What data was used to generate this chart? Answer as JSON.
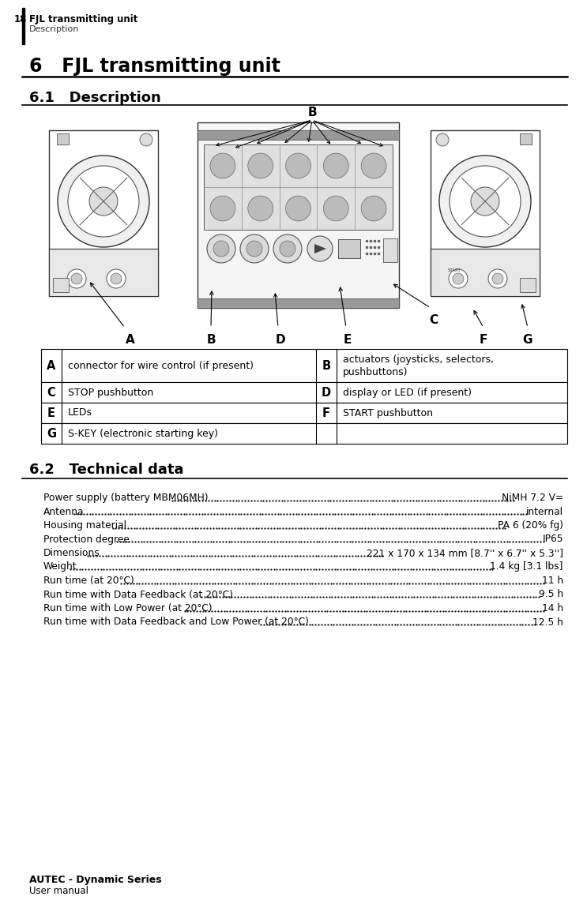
{
  "page_number": "18",
  "header_title": "FJL transmitting unit",
  "header_subtitle": "Description",
  "chapter_title": "6   FJL transmitting unit",
  "section1_title": "6.1   Description",
  "section2_title": "6.2   Technical data",
  "table_rows": [
    {
      "left_key": "A",
      "left_val": "connector for wire control (if present)",
      "right_key": "B",
      "right_val": "actuators (joysticks, selectors,\npushbuttons)"
    },
    {
      "left_key": "C",
      "left_val": "STOP pushbutton",
      "right_key": "D",
      "right_val": "display or LED (if present)"
    },
    {
      "left_key": "E",
      "left_val": "LEDs",
      "right_key": "F",
      "right_val": "START pushbutton"
    },
    {
      "left_key": "G",
      "left_val": "S-KEY (electronic starting key)",
      "right_key": "",
      "right_val": ""
    }
  ],
  "tech_lines": [
    {
      "label": "Power supply (battery MBM06MH)",
      "value": "NiMH 7.2 V="
    },
    {
      "label": "Antenna",
      "value": "internal"
    },
    {
      "label": "Housing material",
      "value": "PA 6 (20% fg)"
    },
    {
      "label": "Protection degree",
      "value": "IP65"
    },
    {
      "label": "Dimensions",
      "value": "221 x 170 x 134 mm [8.7'' x 6.7'' x 5.3'']"
    },
    {
      "label": "Weight",
      "value": "1.4 kg [3.1 lbs]"
    },
    {
      "label": "Run time (at 20°C)",
      "value": "11 h"
    },
    {
      "label": "Run time with Data Feedback (at 20°C)",
      "value": "9.5 h"
    },
    {
      "label": "Run time with Low Power (at 20°C)",
      "value": "14 h"
    },
    {
      "label": "Run time with Data Feedback and Low Power (at 20°C)",
      "value": "12.5 h"
    }
  ],
  "footer_title": "AUTEC - Dynamic Series",
  "footer_subtitle": "User manual",
  "bg_color": "#ffffff"
}
